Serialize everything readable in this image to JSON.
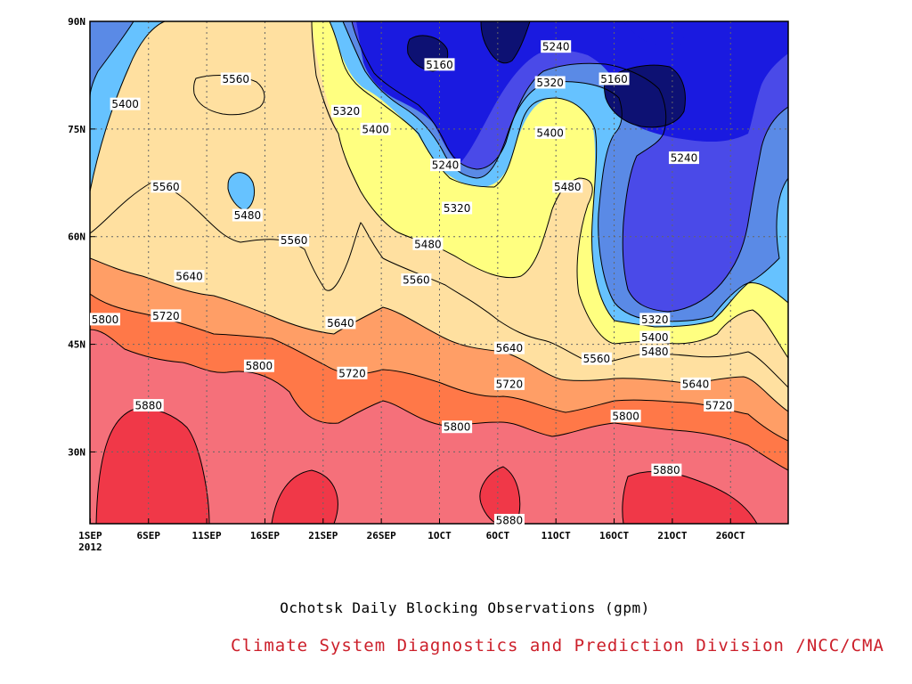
{
  "chart_data": {
    "type": "filled-contour",
    "title": "Ochotsk Daily Blocking Observations (gpm)",
    "credit": "Climate System Diagnostics and Prediction Division /NCC/CMA",
    "x_ticks": [
      {
        "day": 0,
        "label": "1SEP",
        "sublabel": "2012"
      },
      {
        "day": 5,
        "label": "6SEP"
      },
      {
        "day": 10,
        "label": "11SEP"
      },
      {
        "day": 15,
        "label": "16SEP"
      },
      {
        "day": 20,
        "label": "21SEP"
      },
      {
        "day": 25,
        "label": "26SEP"
      },
      {
        "day": 30,
        "label": "1OCT"
      },
      {
        "day": 35,
        "label": "6OCT"
      },
      {
        "day": 40,
        "label": "11OCT"
      },
      {
        "day": 45,
        "label": "16OCT"
      },
      {
        "day": 50,
        "label": "21OCT"
      },
      {
        "day": 55,
        "label": "26OCT"
      }
    ],
    "xlim": [
      0,
      60
    ],
    "y_ticks": [
      {
        "lat": 30,
        "label": "30N"
      },
      {
        "lat": 45,
        "label": "45N"
      },
      {
        "lat": 60,
        "label": "60N"
      },
      {
        "lat": 75,
        "label": "75N"
      },
      {
        "lat": 90,
        "label": "90N"
      }
    ],
    "ylim": [
      20,
      90
    ],
    "grid": true,
    "contour_levels": [
      5160,
      5240,
      5320,
      5400,
      5480,
      5560,
      5640,
      5720,
      5800,
      5880
    ],
    "fill_colors": {
      "below_5160": "#0d1173",
      "5160_5240": "#1a1ae0",
      "5240_5320": "#4a4ae8",
      "5320_5400": "#5a8ae6",
      "5400_5480": "#66c2ff",
      "5480_5560": "#ffff80",
      "5560_5640": "#ffe0a0",
      "5640_5720": "#ffa066",
      "5720_5800": "#ff7848",
      "5800_5880": "#f5707a",
      "above_5880": "#f03848"
    },
    "contour_labels": [
      {
        "text": "5160",
        "day": 30,
        "lat": 84
      },
      {
        "text": "5240",
        "day": 40,
        "lat": 86.5
      },
      {
        "text": "5320",
        "day": 39.5,
        "lat": 81.5
      },
      {
        "text": "5160",
        "day": 45,
        "lat": 82
      },
      {
        "text": "5560",
        "day": 12.5,
        "lat": 82
      },
      {
        "text": "5400",
        "day": 3,
        "lat": 78.5
      },
      {
        "text": "5320",
        "day": 22,
        "lat": 77.5
      },
      {
        "text": "5400",
        "day": 24.5,
        "lat": 75
      },
      {
        "text": "5400",
        "day": 39.5,
        "lat": 74.5
      },
      {
        "text": "5240",
        "day": 30.5,
        "lat": 70
      },
      {
        "text": "5240",
        "day": 51,
        "lat": 71
      },
      {
        "text": "5560",
        "day": 6.5,
        "lat": 67
      },
      {
        "text": "5480",
        "day": 13.5,
        "lat": 63
      },
      {
        "text": "5480",
        "day": 41,
        "lat": 67
      },
      {
        "text": "5320",
        "day": 31.5,
        "lat": 64
      },
      {
        "text": "5560",
        "day": 17.5,
        "lat": 59.5
      },
      {
        "text": "5480",
        "day": 29,
        "lat": 59
      },
      {
        "text": "5640",
        "day": 8.5,
        "lat": 54.5
      },
      {
        "text": "5560",
        "day": 28,
        "lat": 54
      },
      {
        "text": "5800",
        "day": 1,
        "lat": 48.5
      },
      {
        "text": "5720",
        "day": 6.5,
        "lat": 49
      },
      {
        "text": "5640",
        "day": 21.5,
        "lat": 48
      },
      {
        "text": "5320",
        "day": 48.5,
        "lat": 48.5
      },
      {
        "text": "5400",
        "day": 48.5,
        "lat": 46
      },
      {
        "text": "5640",
        "day": 36,
        "lat": 44.5
      },
      {
        "text": "5480",
        "day": 48.5,
        "lat": 44
      },
      {
        "text": "5560",
        "day": 43.5,
        "lat": 43
      },
      {
        "text": "5800",
        "day": 14.5,
        "lat": 42
      },
      {
        "text": "5720",
        "day": 22.5,
        "lat": 41
      },
      {
        "text": "5720",
        "day": 36,
        "lat": 39.5
      },
      {
        "text": "5640",
        "day": 52,
        "lat": 39.5
      },
      {
        "text": "5720",
        "day": 54,
        "lat": 36.5
      },
      {
        "text": "5800",
        "day": 46,
        "lat": 35
      },
      {
        "text": "5800",
        "day": 31.5,
        "lat": 33.5
      },
      {
        "text": "5880",
        "day": 5,
        "lat": 36.5
      },
      {
        "text": "5880",
        "day": 49.5,
        "lat": 27.5
      },
      {
        "text": "5880",
        "day": 36,
        "lat": 20.5
      }
    ]
  }
}
